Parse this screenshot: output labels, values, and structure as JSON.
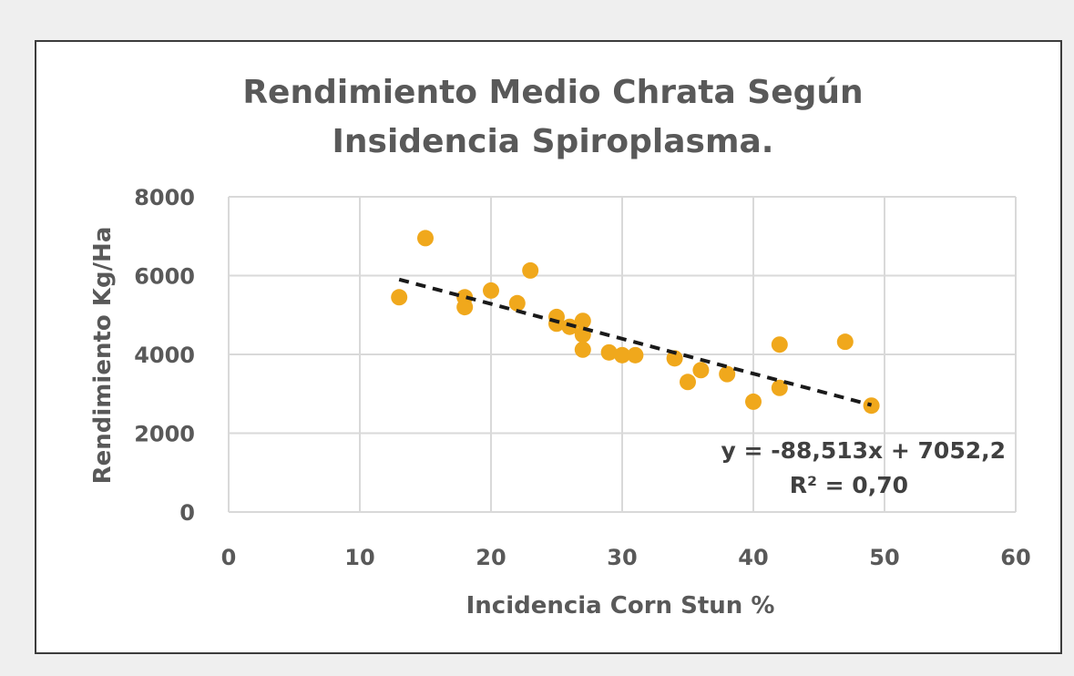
{
  "chart_data": {
    "type": "scatter",
    "title_lines": [
      "Rendimiento Medio Chrata Según",
      "Insidencia Spiroplasma."
    ],
    "xlabel": "Incidencia Corn Stun %",
    "ylabel": "Rendimiento Kg/Ha",
    "xlim": [
      0,
      60
    ],
    "ylim": [
      0,
      8000
    ],
    "x_ticks": [
      0,
      10,
      20,
      30,
      40,
      50,
      60
    ],
    "y_ticks": [
      0,
      2000,
      4000,
      6000,
      8000
    ],
    "grid": true,
    "point_color": "#f0a81c",
    "gridline_color": "#d9d9d9",
    "points": [
      {
        "x": 13,
        "y": 5450
      },
      {
        "x": 15,
        "y": 6950
      },
      {
        "x": 18,
        "y": 5450
      },
      {
        "x": 18,
        "y": 5200
      },
      {
        "x": 20,
        "y": 5620
      },
      {
        "x": 22,
        "y": 5300
      },
      {
        "x": 23,
        "y": 6130
      },
      {
        "x": 25,
        "y": 4950
      },
      {
        "x": 25,
        "y": 4780
      },
      {
        "x": 26,
        "y": 4700
      },
      {
        "x": 27,
        "y": 4850
      },
      {
        "x": 27,
        "y": 4500
      },
      {
        "x": 27,
        "y": 4120
      },
      {
        "x": 29,
        "y": 4050
      },
      {
        "x": 30,
        "y": 3980
      },
      {
        "x": 31,
        "y": 3980
      },
      {
        "x": 34,
        "y": 3900
      },
      {
        "x": 35,
        "y": 3300
      },
      {
        "x": 36,
        "y": 3600
      },
      {
        "x": 38,
        "y": 3500
      },
      {
        "x": 40,
        "y": 2800
      },
      {
        "x": 42,
        "y": 4250
      },
      {
        "x": 42,
        "y": 3150
      },
      {
        "x": 47,
        "y": 4320
      },
      {
        "x": 49,
        "y": 2700
      }
    ],
    "trendline": {
      "slope": -88.513,
      "intercept": 7052.2,
      "x_range": [
        13,
        49
      ],
      "equation": "y = -88,513x + 7052,2",
      "r_squared": "R² = 0,70",
      "style": "dashed",
      "color": "#1a1a1a"
    }
  }
}
